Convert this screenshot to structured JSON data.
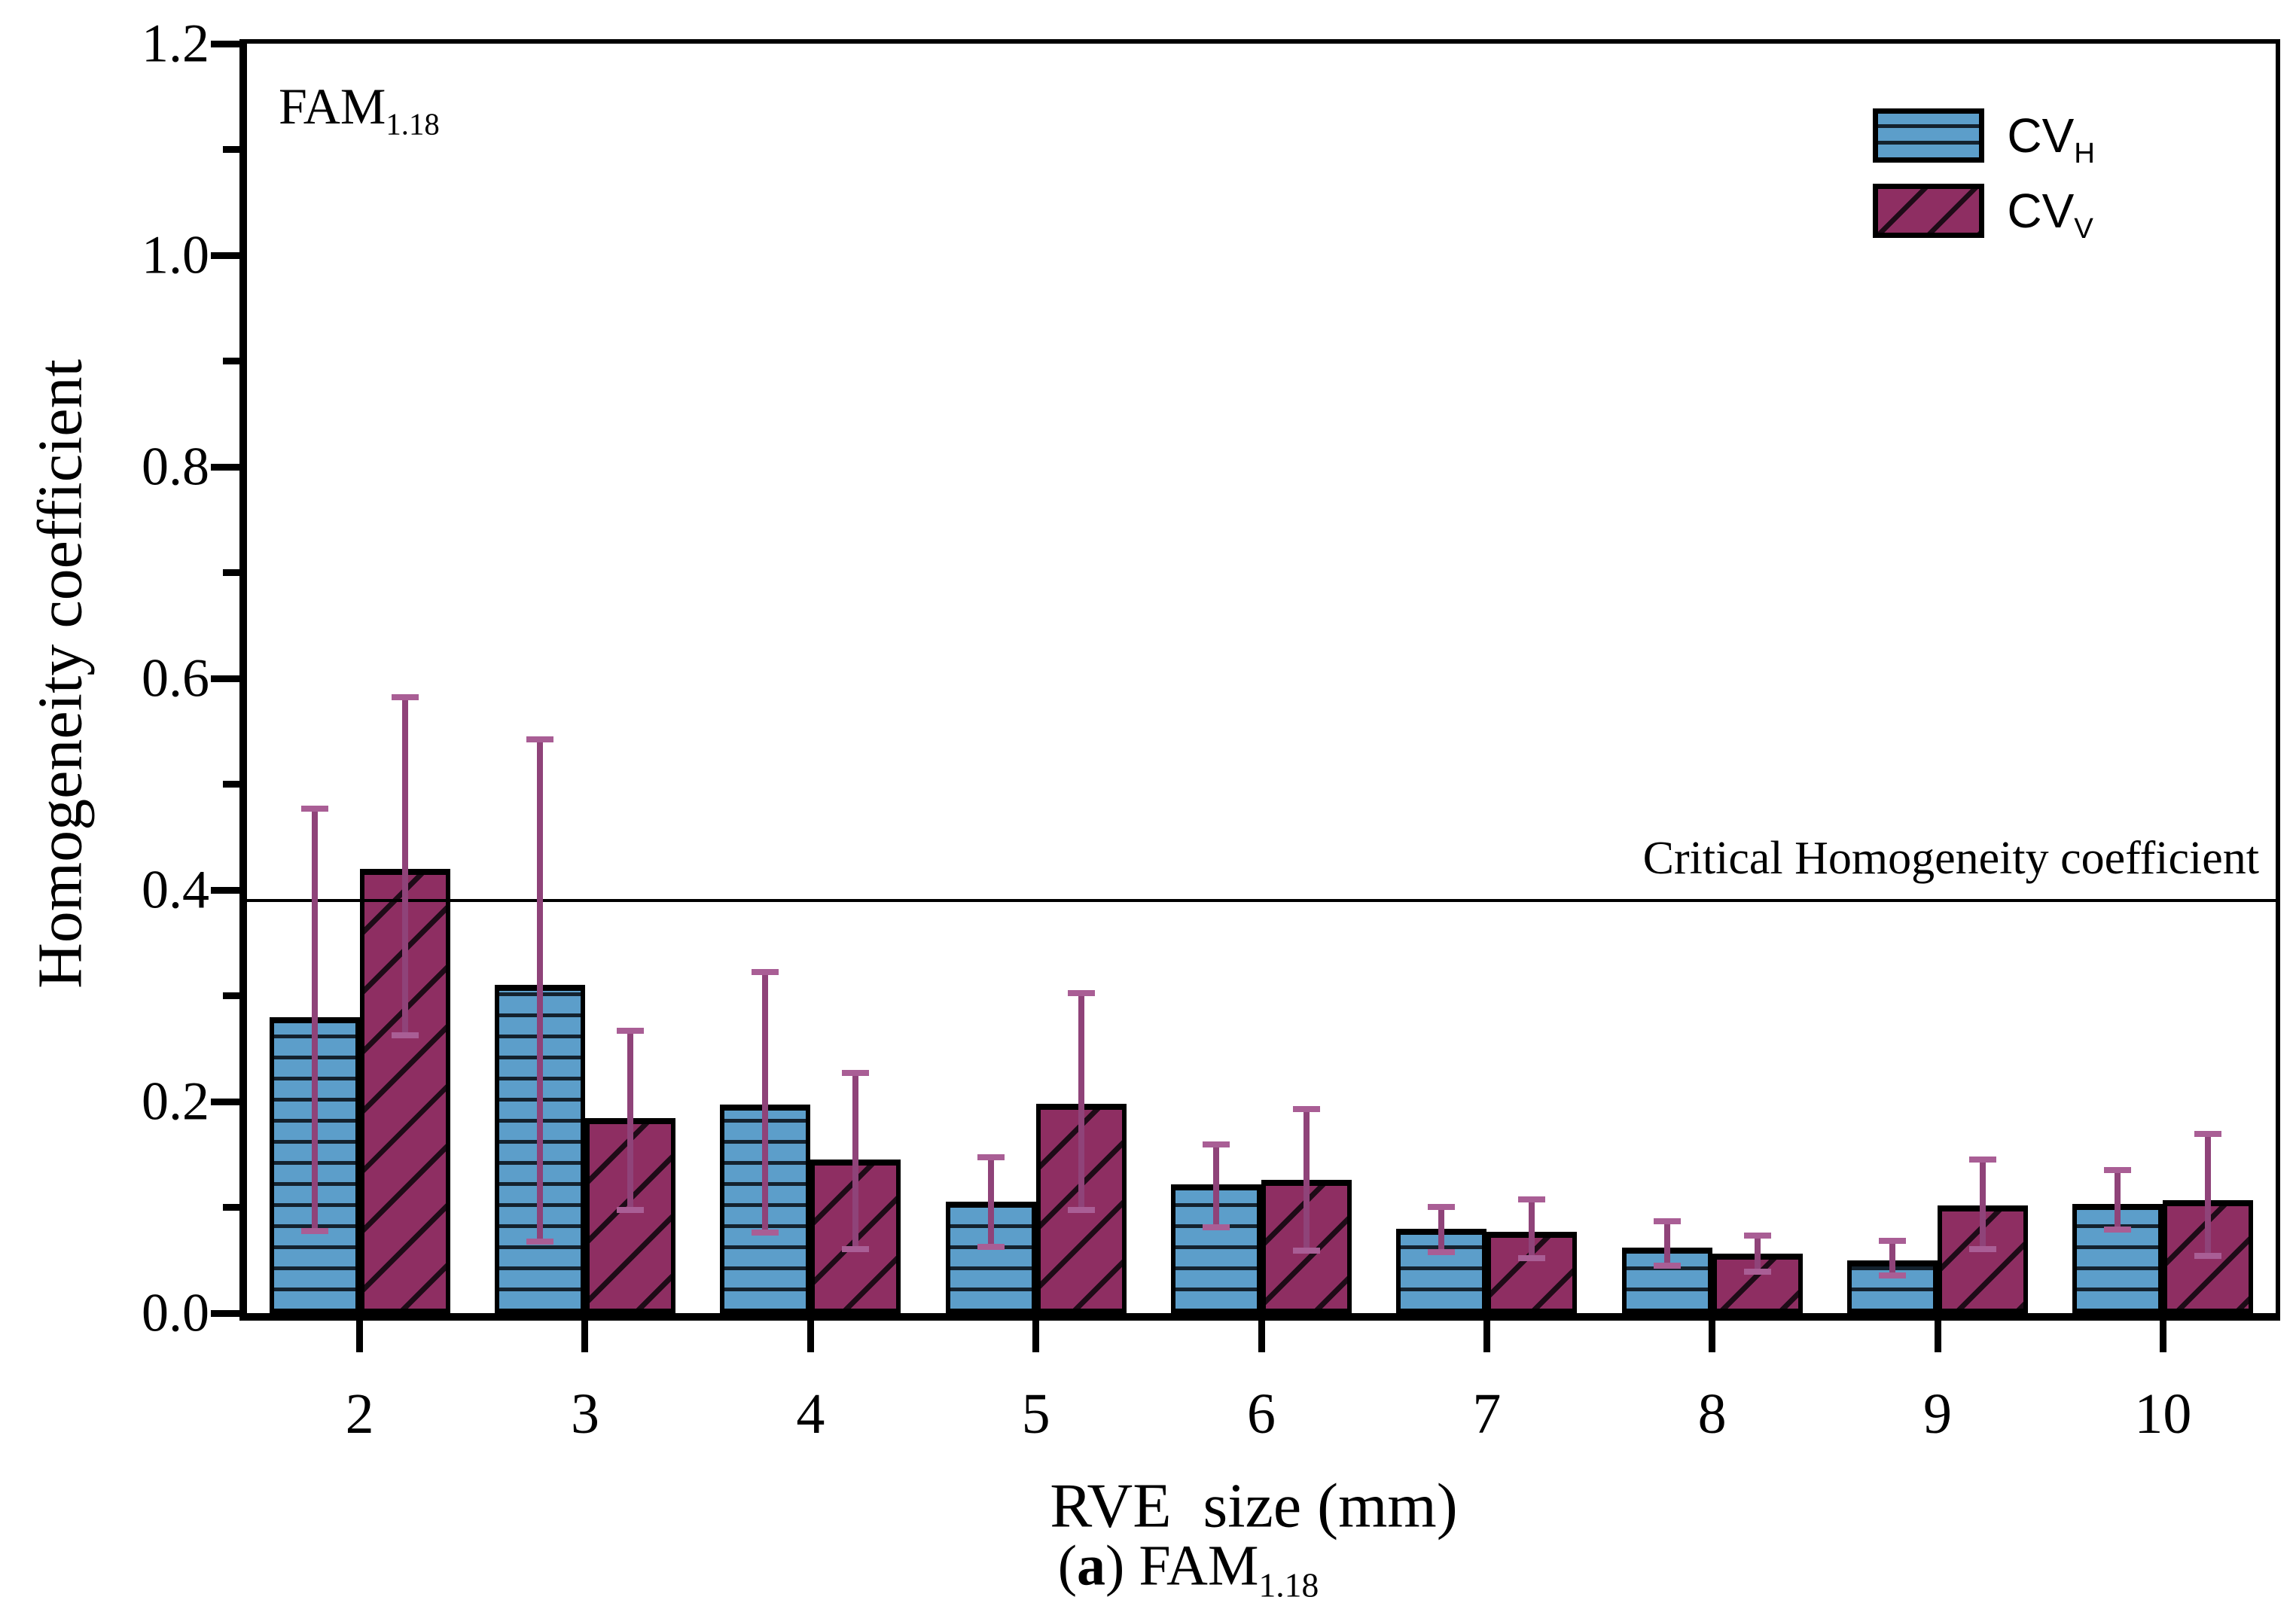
{
  "figure": {
    "corner_label": {
      "base": "FAM",
      "subscript": "1.18"
    },
    "caption": {
      "prefix": "(",
      "bold": "a",
      "mid": ") FAM",
      "subscript": "1.18"
    }
  },
  "chart_data": {
    "type": "bar",
    "title": "",
    "xlabel": "RVE  size (mm)",
    "ylabel": "Homogeneity coefficient",
    "categories": [
      2,
      3,
      4,
      5,
      6,
      7,
      8,
      9,
      10
    ],
    "ylim": [
      0,
      1.2
    ],
    "y_major_ticks": [
      0.0,
      0.2,
      0.4,
      0.6,
      0.8,
      1.0,
      1.2
    ],
    "y_tick_labels": [
      "0.0",
      "0.2",
      "0.4",
      "0.6",
      "0.8",
      "1.0",
      "1.2"
    ],
    "y_minor_step": 0.1,
    "grid": "off",
    "legend_position": "top-right",
    "reference_line": {
      "value": 0.39,
      "label": "Critical Homogeneity coefficient"
    },
    "series": [
      {
        "name": "CVH",
        "label_base": "CV",
        "label_sub": "H",
        "color": "#5C9ECA",
        "hatch": "horizontal",
        "values": [
          0.28,
          0.31,
          0.197,
          0.105,
          0.122,
          0.08,
          0.062,
          0.05,
          0.103
        ],
        "error_low": [
          0.075,
          0.065,
          0.073,
          0.06,
          0.078,
          0.055,
          0.042,
          0.033,
          0.076
        ],
        "error_high": [
          0.48,
          0.545,
          0.325,
          0.15,
          0.162,
          0.103,
          0.09,
          0.071,
          0.138
        ]
      },
      {
        "name": "CVV",
        "label_base": "CV",
        "label_sub": "V",
        "color": "#8E2E62",
        "hatch": "diagonal",
        "values": [
          0.42,
          0.184,
          0.145,
          0.198,
          0.126,
          0.077,
          0.056,
          0.102,
          0.107
        ],
        "error_low": [
          0.26,
          0.095,
          0.058,
          0.095,
          0.056,
          0.049,
          0.036,
          0.058,
          0.051
        ],
        "error_high": [
          0.585,
          0.27,
          0.23,
          0.305,
          0.196,
          0.11,
          0.076,
          0.148,
          0.172
        ]
      }
    ],
    "colors": {
      "error_bar_stem": "#8F4379",
      "error_bar_cap": "#A95E95",
      "axis": "#000000",
      "reference_line": "#000000"
    }
  }
}
